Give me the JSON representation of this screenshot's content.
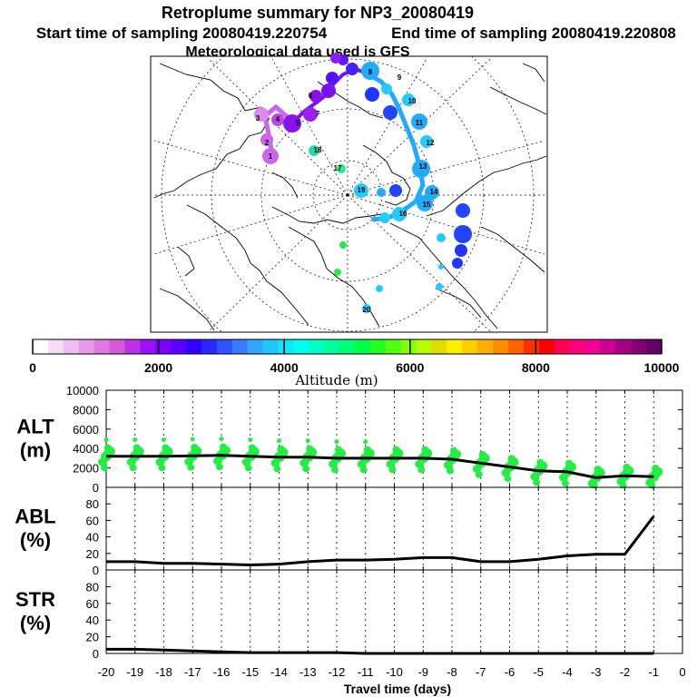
{
  "header": {
    "title": "Retroplume summary for NP3_20080419",
    "start_label": "Start time of sampling 20080419.220754",
    "end_label": "End time of sampling 20080419.220808",
    "met_label": "Meteorological data used is GFS"
  },
  "colorbar": {
    "ticks": [
      "0",
      "2000",
      "4000",
      "6000",
      "8000",
      "10000"
    ],
    "title": "Altitude (m)",
    "colors": [
      "#ffffff",
      "#f7def7",
      "#efbdef",
      "#e79ce7",
      "#de7bde",
      "#d65ad6",
      "#bd31e7",
      "#9c10f7",
      "#7b00ff",
      "#5a00ff",
      "#3100ff",
      "#2929ff",
      "#3152ff",
      "#397bff",
      "#31a5ff",
      "#21c6ff",
      "#10e7ff",
      "#00ffef",
      "#00ffc6",
      "#00ff9c",
      "#00ff73",
      "#00ff4a",
      "#21ff21",
      "#52ff10",
      "#84ff00",
      "#b5ff00",
      "#dede00",
      "#ffef00",
      "#ffce00",
      "#ffad00",
      "#ff8c00",
      "#ff6300",
      "#ff3100",
      "#ff0000",
      "#ff0052",
      "#ff007b",
      "#ef0094",
      "#ce0094",
      "#a50084",
      "#840073",
      "#630063"
    ]
  },
  "map": {
    "labels": [
      {
        "t": "1",
        "c": "#cc55ee"
      },
      {
        "t": "2",
        "c": "#cc55ee"
      },
      {
        "t": "3",
        "c": "#cc55ee"
      },
      {
        "t": "4",
        "c": "#9922dd"
      },
      {
        "t": "5",
        "c": "#8811dd"
      },
      {
        "t": "6",
        "c": "#8811dd"
      },
      {
        "t": "7",
        "c": "#7a12e0"
      },
      {
        "t": "8",
        "c": "#22aaff"
      },
      {
        "t": "9",
        "c": "#22aaff"
      },
      {
        "t": "10",
        "c": "#22aaff"
      },
      {
        "t": "11",
        "c": "#22aaff"
      },
      {
        "t": "12",
        "c": "#22aaff"
      },
      {
        "t": "13",
        "c": "#22aaff"
      },
      {
        "t": "14",
        "c": "#22aaff"
      },
      {
        "t": "15",
        "c": "#22aaff"
      },
      {
        "t": "16",
        "c": "#22aaff"
      },
      {
        "t": "17",
        "c": "#22aaff"
      },
      {
        "t": "18",
        "c": "#22aaff"
      },
      {
        "t": "19",
        "c": "#22aaff"
      },
      {
        "t": "20",
        "c": "#22aaff"
      }
    ]
  },
  "chart_data": [
    {
      "type": "line",
      "panel": "ALT",
      "ylabel_line1": "ALT",
      "ylabel_line2": "(m)",
      "xlabel": "Travel time (days)",
      "ylim": [
        0,
        10000
      ],
      "yticks": [
        0,
        2000,
        4000,
        6000,
        8000,
        10000
      ],
      "xticks": [
        -20,
        -19,
        -18,
        -17,
        -16,
        -15,
        -14,
        -13,
        -12,
        -11,
        -10,
        -9,
        -8,
        -7,
        -6,
        -5,
        -4,
        -3,
        -2,
        -1,
        0
      ],
      "xlim": [
        -20,
        0
      ],
      "x": [
        -20,
        -19,
        -18,
        -17,
        -16,
        -15,
        -14,
        -13,
        -12,
        -11,
        -10,
        -9,
        -8,
        -7,
        -6,
        -5,
        -4,
        -3,
        -2,
        -1
      ],
      "values": [
        3200,
        3200,
        3200,
        3250,
        3300,
        3200,
        3100,
        3100,
        3000,
        3000,
        3000,
        3000,
        2900,
        2500,
        2100,
        1700,
        1600,
        1000,
        1200,
        1100
      ],
      "scatter_color": "#22ee44"
    },
    {
      "type": "line",
      "panel": "ABL",
      "ylabel_line1": "ABL",
      "ylabel_line2": "(%)",
      "ylim": [
        0,
        100
      ],
      "yticks": [
        0,
        20,
        40,
        60,
        80
      ],
      "x": [
        -20,
        -19,
        -18,
        -17,
        -16,
        -15,
        -14,
        -13,
        -12,
        -11,
        -10,
        -9,
        -8,
        -7,
        -6,
        -5,
        -4,
        -3,
        -2,
        -1
      ],
      "values": [
        10,
        10,
        8,
        8,
        7,
        6,
        7,
        10,
        12,
        12,
        13,
        15,
        15,
        10,
        10,
        13,
        17,
        19,
        19,
        65
      ]
    },
    {
      "type": "line",
      "panel": "STR",
      "ylabel_line1": "STR",
      "ylabel_line2": "(%)",
      "ylim": [
        0,
        100
      ],
      "yticks": [
        0,
        20,
        40,
        60,
        80
      ],
      "x": [
        -20,
        -19,
        -18,
        -17,
        -16,
        -15,
        -14,
        -13,
        -12,
        -11,
        -10,
        -9,
        -8,
        -7,
        -6,
        -5,
        -4,
        -3,
        -2,
        -1
      ],
      "values": [
        5,
        5,
        4,
        3,
        2,
        1,
        1,
        1,
        1,
        0,
        0,
        0,
        0,
        0,
        0,
        0,
        0,
        0,
        0,
        0
      ]
    }
  ]
}
